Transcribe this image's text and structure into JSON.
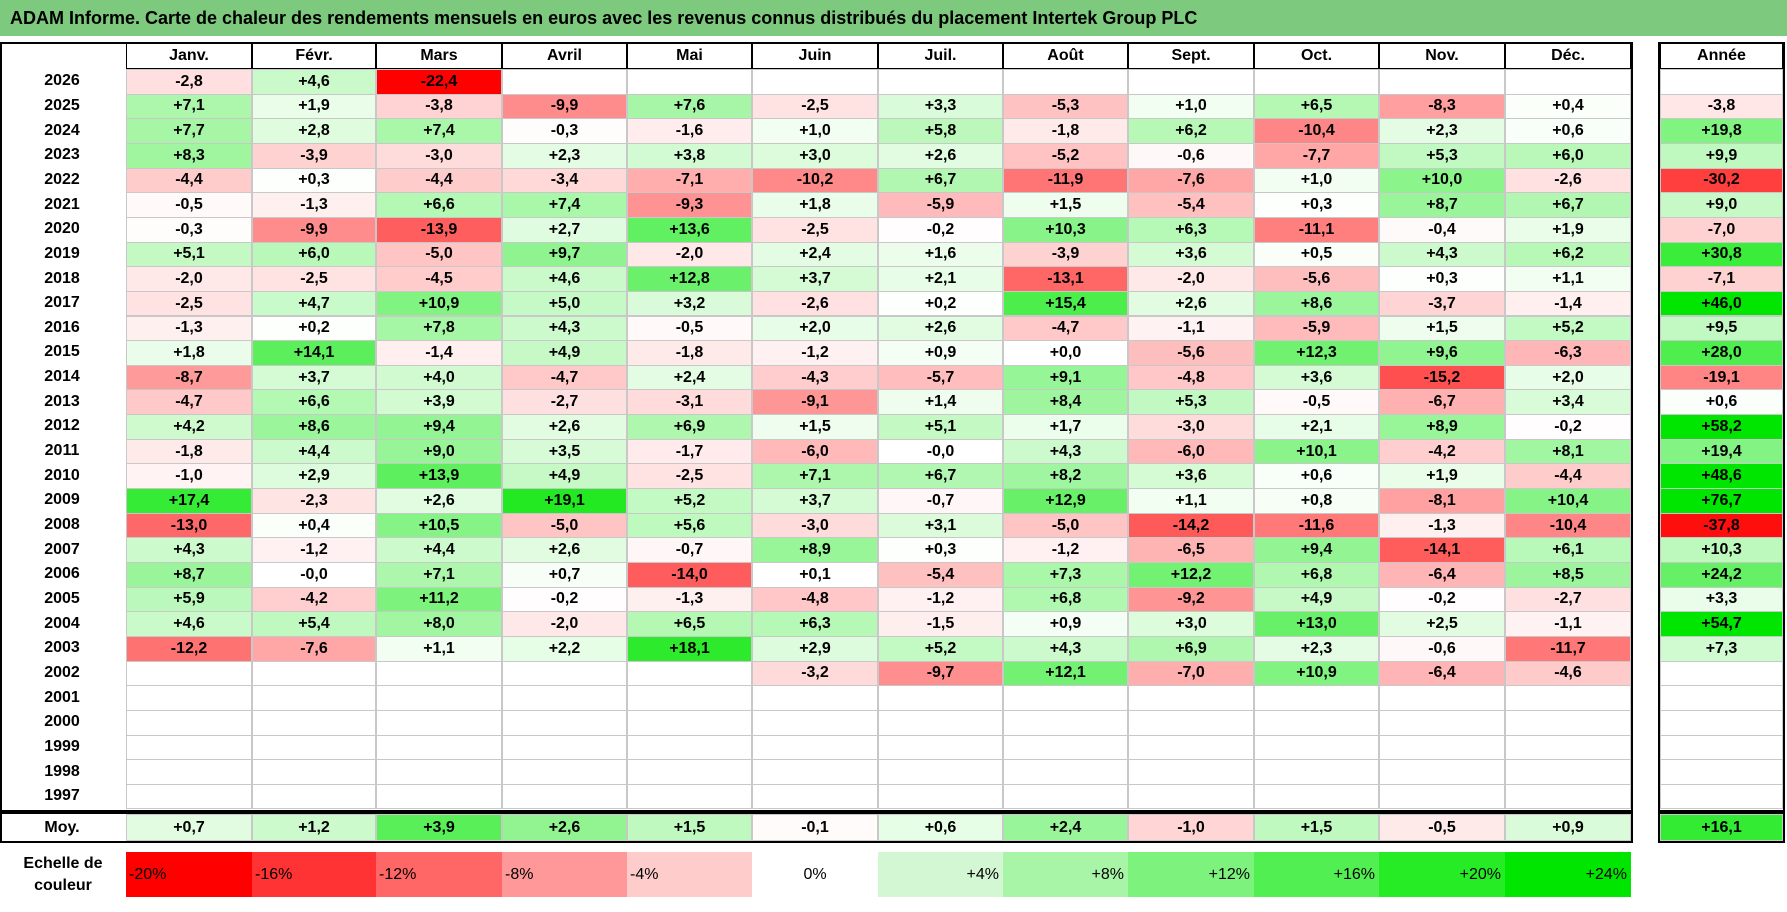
{
  "title": "ADAM Informe. Carte de chaleur des rendements mensuels en euros avec les revenus connus distribués du placement Intertek Group PLC",
  "chart_data": {
    "type": "heatmap",
    "months": [
      "Janv.",
      "Févr.",
      "Mars",
      "Avril",
      "Mai",
      "Juin",
      "Juil.",
      "Août",
      "Sept.",
      "Oct.",
      "Nov.",
      "Déc."
    ],
    "year_header": "Année",
    "rows": [
      {
        "year": "2026",
        "values": [
          -2.8,
          4.6,
          -22.4,
          null,
          null,
          null,
          null,
          null,
          null,
          null,
          null,
          null
        ],
        "annual": null
      },
      {
        "year": "2025",
        "values": [
          7.1,
          1.9,
          -3.8,
          -9.9,
          7.6,
          -2.5,
          3.3,
          -5.3,
          1.0,
          6.5,
          -8.3,
          0.4
        ],
        "annual": -3.8
      },
      {
        "year": "2024",
        "values": [
          7.7,
          2.8,
          7.4,
          -0.3,
          -1.6,
          1.0,
          5.8,
          -1.8,
          6.2,
          -10.4,
          2.3,
          0.6
        ],
        "annual": 19.8
      },
      {
        "year": "2023",
        "values": [
          8.3,
          -3.9,
          -3.0,
          2.3,
          3.8,
          3.0,
          2.6,
          -5.2,
          -0.6,
          -7.7,
          5.3,
          6.0
        ],
        "annual": 9.9
      },
      {
        "year": "2022",
        "values": [
          -4.4,
          0.3,
          -4.4,
          -3.4,
          -7.1,
          -10.2,
          6.7,
          -11.9,
          -7.6,
          1.0,
          10.0,
          -2.6
        ],
        "annual": -30.2
      },
      {
        "year": "2021",
        "values": [
          -0.5,
          -1.3,
          6.6,
          7.4,
          -9.3,
          1.8,
          -5.9,
          1.5,
          -5.4,
          0.3,
          8.7,
          6.7
        ],
        "annual": 9.0
      },
      {
        "year": "2020",
        "values": [
          -0.3,
          -9.9,
          -13.9,
          2.7,
          13.6,
          -2.5,
          -0.2,
          10.3,
          6.3,
          -11.1,
          -0.4,
          1.9
        ],
        "annual": -7.0
      },
      {
        "year": "2019",
        "values": [
          5.1,
          6.0,
          -5.0,
          9.7,
          -2.0,
          2.4,
          1.6,
          -3.9,
          3.6,
          0.5,
          4.3,
          6.2
        ],
        "annual": 30.8
      },
      {
        "year": "2018",
        "values": [
          -2.0,
          -2.5,
          -4.5,
          4.6,
          12.8,
          3.7,
          2.1,
          -13.1,
          -2.0,
          -5.6,
          0.3,
          1.1
        ],
        "annual": -7.1
      },
      {
        "year": "2017",
        "values": [
          -2.5,
          4.7,
          10.9,
          5.0,
          3.2,
          -2.6,
          0.2,
          15.4,
          2.6,
          8.6,
          -3.7,
          -1.4
        ],
        "annual": 46.0
      },
      {
        "year": "2016",
        "values": [
          -1.3,
          0.2,
          7.8,
          4.3,
          -0.5,
          2.0,
          2.6,
          -4.7,
          -1.1,
          -5.9,
          1.5,
          5.2
        ],
        "annual": 9.5
      },
      {
        "year": "2015",
        "values": [
          1.8,
          14.1,
          -1.4,
          4.9,
          -1.8,
          -1.2,
          0.9,
          0.0,
          -5.6,
          12.3,
          9.6,
          -6.3
        ],
        "annual": 28.0
      },
      {
        "year": "2014",
        "values": [
          -8.7,
          3.7,
          4.0,
          -4.7,
          2.4,
          -4.3,
          -5.7,
          9.1,
          -4.8,
          3.6,
          -15.2,
          2.0
        ],
        "annual": -19.1
      },
      {
        "year": "2013",
        "values": [
          -4.7,
          6.6,
          3.9,
          -2.7,
          -3.1,
          -9.1,
          1.4,
          8.4,
          5.3,
          -0.5,
          -6.7,
          3.4
        ],
        "annual": 0.6
      },
      {
        "year": "2012",
        "values": [
          4.2,
          8.6,
          9.4,
          2.6,
          6.9,
          1.5,
          5.1,
          1.7,
          -3.0,
          2.1,
          8.9,
          -0.2
        ],
        "annual": 58.2
      },
      {
        "year": "2011",
        "values": [
          -1.8,
          4.4,
          9.0,
          3.5,
          -1.7,
          -6.0,
          -0.0,
          4.3,
          -6.0,
          10.1,
          -4.2,
          8.1
        ],
        "annual": 19.4
      },
      {
        "year": "2010",
        "values": [
          -1.0,
          2.9,
          13.9,
          4.9,
          -2.5,
          7.1,
          6.7,
          8.2,
          3.6,
          0.6,
          1.9,
          -4.4
        ],
        "annual": 48.6
      },
      {
        "year": "2009",
        "values": [
          17.4,
          -2.3,
          2.6,
          19.1,
          5.2,
          3.7,
          -0.7,
          12.9,
          1.1,
          0.8,
          -8.1,
          10.4
        ],
        "annual": 76.7
      },
      {
        "year": "2008",
        "values": [
          -13.0,
          0.4,
          10.5,
          -5.0,
          5.6,
          -3.0,
          3.1,
          -5.0,
          -14.2,
          -11.6,
          -1.3,
          -10.4
        ],
        "annual": -37.8
      },
      {
        "year": "2007",
        "values": [
          4.3,
          -1.2,
          4.4,
          2.6,
          -0.7,
          8.9,
          0.3,
          -1.2,
          -6.5,
          9.4,
          -14.1,
          6.1
        ],
        "annual": 10.3
      },
      {
        "year": "2006",
        "values": [
          8.7,
          -0.0,
          7.1,
          0.7,
          -14.0,
          0.1,
          -5.4,
          7.3,
          12.2,
          6.8,
          -6.4,
          8.5
        ],
        "annual": 24.2
      },
      {
        "year": "2005",
        "values": [
          5.9,
          -4.2,
          11.2,
          -0.2,
          -1.3,
          -4.8,
          -1.2,
          6.8,
          -9.2,
          4.9,
          -0.2,
          -2.7
        ],
        "annual": 3.3
      },
      {
        "year": "2004",
        "values": [
          4.6,
          5.4,
          8.0,
          -2.0,
          6.5,
          6.3,
          -1.5,
          0.9,
          3.0,
          13.0,
          2.5,
          -1.1
        ],
        "annual": 54.7
      },
      {
        "year": "2003",
        "values": [
          -12.2,
          -7.6,
          1.1,
          2.2,
          18.1,
          2.9,
          5.2,
          4.3,
          6.9,
          2.3,
          -0.6,
          -11.7
        ],
        "annual": 7.3
      },
      {
        "year": "2002",
        "values": [
          null,
          null,
          null,
          null,
          null,
          -3.2,
          -9.7,
          12.1,
          -7.0,
          10.9,
          -6.4,
          -4.6
        ],
        "annual": null
      },
      {
        "year": "2001",
        "values": [
          null,
          null,
          null,
          null,
          null,
          null,
          null,
          null,
          null,
          null,
          null,
          null
        ],
        "annual": null
      },
      {
        "year": "2000",
        "values": [
          null,
          null,
          null,
          null,
          null,
          null,
          null,
          null,
          null,
          null,
          null,
          null
        ],
        "annual": null
      },
      {
        "year": "1999",
        "values": [
          null,
          null,
          null,
          null,
          null,
          null,
          null,
          null,
          null,
          null,
          null,
          null
        ],
        "annual": null
      },
      {
        "year": "1998",
        "values": [
          null,
          null,
          null,
          null,
          null,
          null,
          null,
          null,
          null,
          null,
          null,
          null
        ],
        "annual": null
      },
      {
        "year": "1997",
        "values": [
          null,
          null,
          null,
          null,
          null,
          null,
          null,
          null,
          null,
          null,
          null,
          null
        ],
        "annual": null
      }
    ],
    "average": {
      "label": "Moy.",
      "values": [
        0.7,
        1.2,
        3.9,
        2.6,
        1.5,
        -0.1,
        0.6,
        2.4,
        -1.0,
        1.5,
        -0.5,
        0.9
      ],
      "annual": 16.1
    },
    "scale": {
      "label": "Echelle de couleur",
      "stops": [
        {
          "text": "-20%",
          "color": "#ff0000"
        },
        {
          "text": "-16%",
          "color": "#ff3333"
        },
        {
          "text": "-12%",
          "color": "#ff6666"
        },
        {
          "text": "-8%",
          "color": "#ff9999"
        },
        {
          "text": "-4%",
          "color": "#ffcccc"
        },
        {
          "text": "0%",
          "color": "#ffffff"
        },
        {
          "text": "+4%",
          "color": "#d2f7d2"
        },
        {
          "text": "+8%",
          "color": "#a8f5a8"
        },
        {
          "text": "+12%",
          "color": "#7df27d"
        },
        {
          "text": "+16%",
          "color": "#52ef52"
        },
        {
          "text": "+20%",
          "color": "#26ec26"
        },
        {
          "text": "+24%",
          "color": "#00e600"
        }
      ]
    },
    "colors": {
      "negative_max": "#ff0000",
      "neutral": "#ffffff",
      "positive_max": "#00e600",
      "title_bar": "#7dc97d"
    }
  }
}
